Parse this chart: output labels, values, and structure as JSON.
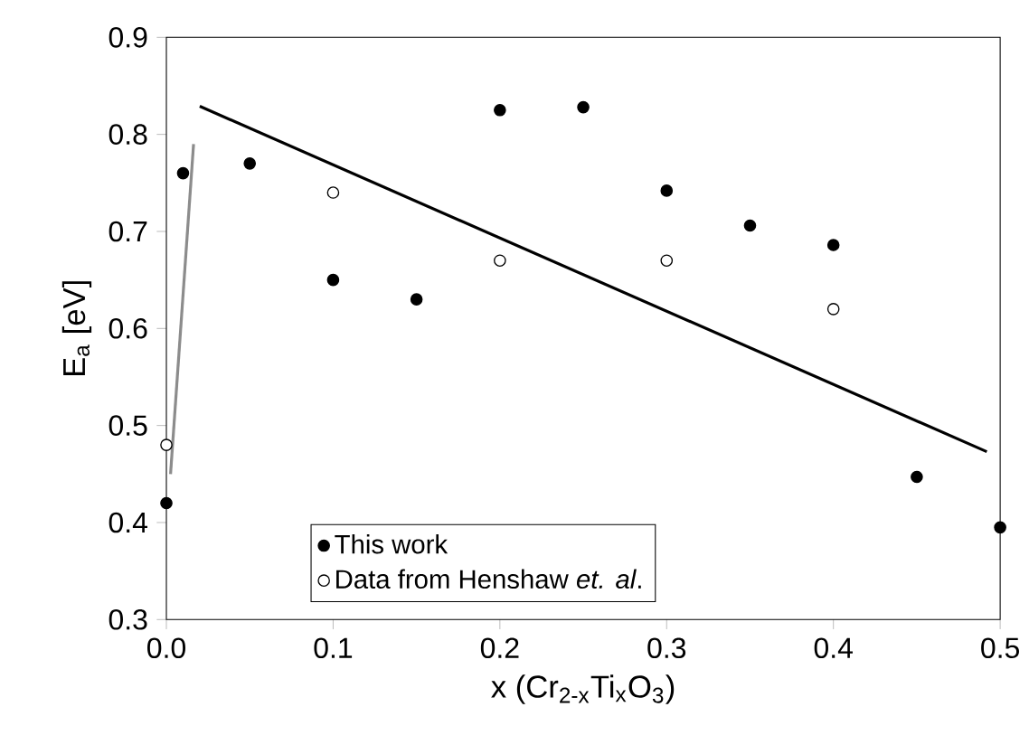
{
  "chart_data": {
    "type": "scatter",
    "xlabel": "x (Cr$_{2-x}$Ti$_{x}$O$_{3}$)",
    "ylabel": "E$_{a}$ [eV]",
    "xlim": [
      0,
      0.5
    ],
    "ylim": [
      0.3,
      0.9
    ],
    "xticks": [
      {
        "value": 0,
        "label": "0.0"
      },
      0.1,
      0.2,
      0.3,
      0.4,
      0.5
    ],
    "yticks": [
      0.3,
      0.4,
      0.5,
      0.6,
      0.7,
      0.8,
      0.9
    ],
    "grid": false,
    "legend": "bottom",
    "series": [
      {
        "name": "This work",
        "type": "scatter",
        "marker": "circle",
        "color": "#000000",
        "x": [
          0,
          0.01,
          0.05,
          0.1,
          0.15,
          0.2,
          0.25,
          0.3,
          0.35,
          0.4,
          0.45,
          0.5
        ],
        "values": [
          0.42,
          0.76,
          0.77,
          0.65,
          0.63,
          0.825,
          0.828,
          0.742,
          0.706,
          0.686,
          0.447,
          0.395
        ]
      },
      {
        "name": "Data from Henshaw *et. al*.",
        "type": "scatter",
        "marker": "circle",
        "color": "#ffffff",
        "x": [
          0,
          0.1,
          0.2,
          0.3,
          0.4
        ],
        "values": [
          0.48,
          0.74,
          0.67,
          0.67,
          0.62
        ]
      },
      {
        "type": "line",
        "color": "#000000",
        "marker": "none",
        "line_style": "solid",
        "x": [
          0.02,
          0.492
        ],
        "values": [
          0.829,
          0.473
        ]
      },
      {
        "type": "line",
        "color": "#8c8c8c",
        "marker": "none",
        "line_style": "solid",
        "x": [
          0.0025,
          0.0163
        ],
        "values": [
          0.45,
          0.79
        ]
      }
    ]
  }
}
